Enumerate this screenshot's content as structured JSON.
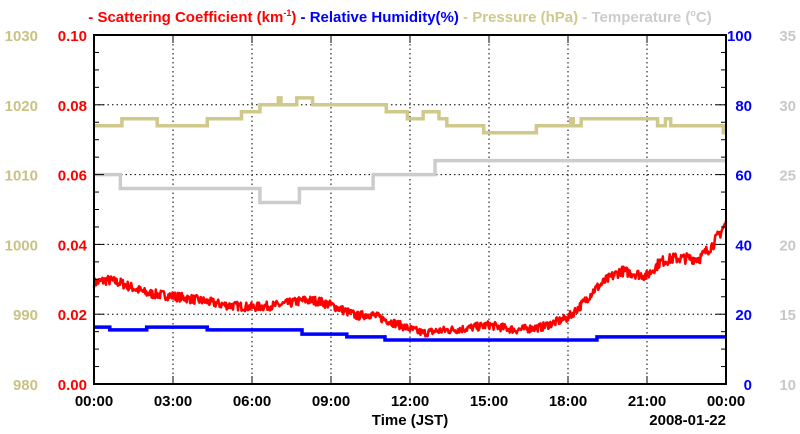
{
  "chart_data": {
    "type": "line",
    "legend": [
      {
        "label": "Scattering Coefficient (km",
        "sup": "-1",
        "close": ")",
        "color": "#ff0000"
      },
      {
        "label": "Relative Humidity(%)",
        "color": "#0000ff"
      },
      {
        "label": "Pressure (hPa)",
        "color": "#cfc98c"
      },
      {
        "label": "Temperature (",
        "sup": "o",
        "close": "C)",
        "color": "#cccccc"
      }
    ],
    "legend_placement": "top",
    "xlabel": "Time (JST)",
    "date_label": "2008-01-22",
    "x_unit": "hours",
    "xlim": [
      0,
      24
    ],
    "x_ticks": [
      "00:00",
      "03:00",
      "06:00",
      "09:00",
      "12:00",
      "15:00",
      "18:00",
      "21:00",
      "00:00"
    ],
    "grid": true,
    "axes": {
      "scattering": {
        "side": "left-inner",
        "lim": [
          0,
          0.1
        ],
        "ticks": [
          "0.00",
          "0.02",
          "0.04",
          "0.06",
          "0.08",
          "0.10"
        ],
        "color": "#ff0000"
      },
      "pressure": {
        "side": "left-outer",
        "lim": [
          980,
          1030
        ],
        "ticks": [
          "980",
          "990",
          "1000",
          "1010",
          "1020",
          "1030"
        ],
        "color": "#c9c284"
      },
      "humidity": {
        "side": "right-inner",
        "lim": [
          0,
          100
        ],
        "ticks": [
          "0",
          "20",
          "40",
          "60",
          "80",
          "100"
        ],
        "color": "#0000ff"
      },
      "temperature": {
        "side": "right-outer",
        "lim": [
          10,
          35
        ],
        "ticks": [
          "10",
          "15",
          "20",
          "25",
          "30",
          "35"
        ],
        "color": "#c8c8c8"
      }
    },
    "series": [
      {
        "name": "Scattering Coefficient",
        "axis": "scattering",
        "style": "noisy",
        "color": "#ff0000",
        "x": [
          0,
          0.5,
          1,
          2,
          3,
          4,
          5,
          6,
          7,
          8,
          8.5,
          9,
          10,
          10.5,
          11,
          12,
          12.5,
          13,
          14,
          15,
          16,
          17,
          18,
          18.5,
          19,
          19.5,
          20,
          21,
          21.5,
          22,
          23,
          23.5,
          24
        ],
        "y": [
          0.029,
          0.0298,
          0.029,
          0.026,
          0.0252,
          0.024,
          0.0226,
          0.022,
          0.0226,
          0.024,
          0.0238,
          0.0226,
          0.0195,
          0.02,
          0.0186,
          0.0158,
          0.0146,
          0.0152,
          0.0158,
          0.0169,
          0.0155,
          0.0163,
          0.019,
          0.0226,
          0.027,
          0.03,
          0.0324,
          0.031,
          0.035,
          0.036,
          0.036,
          0.04,
          0.046
        ]
      },
      {
        "name": "Relative Humidity",
        "axis": "humidity",
        "style": "step",
        "color": "#0000ff",
        "x": [
          0,
          0.6,
          2.0,
          4.3,
          7.9,
          9.6,
          11.05,
          19.1,
          24
        ],
        "y": [
          16.3,
          15.5,
          16.3,
          15.5,
          14.3,
          13.5,
          12.6,
          13.5,
          13.5
        ]
      },
      {
        "name": "Pressure",
        "axis": "pressure",
        "style": "step",
        "color": "#cfc98c",
        "x": [
          0,
          1.06,
          2.4,
          4.3,
          5.6,
          6.3,
          7.0,
          7.1,
          7.7,
          8.3,
          11.1,
          11.9,
          12.5,
          13.1,
          13.4,
          14.8,
          16.8,
          18.1,
          18.2,
          18.5,
          21.4,
          21.7,
          21.9,
          23.9,
          24
        ],
        "y": [
          1017,
          1018,
          1017,
          1018,
          1019,
          1020,
          1021,
          1020,
          1021,
          1020,
          1019,
          1018,
          1019,
          1018,
          1017,
          1016,
          1017,
          1018,
          1017,
          1018,
          1017,
          1018,
          1017,
          1016,
          1016
        ]
      },
      {
        "name": "Temperature",
        "axis": "temperature",
        "style": "step",
        "color": "#cccccc",
        "x": [
          0,
          1.0,
          6.3,
          7.8,
          10.6,
          12.95,
          24
        ],
        "y": [
          25,
          24,
          23,
          24,
          25,
          26,
          26
        ]
      }
    ]
  }
}
